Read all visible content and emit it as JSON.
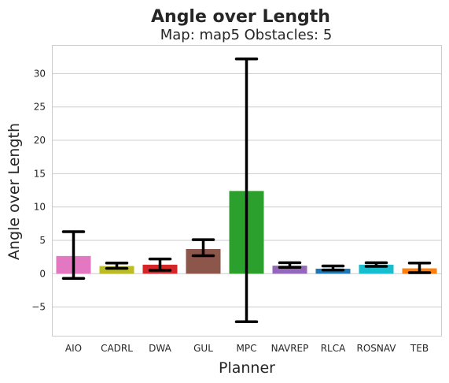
{
  "chart_data": {
    "type": "bar",
    "title": "Angle over Length",
    "subtitle": "Map: map5 Obstacles: 5",
    "xlabel": "Planner",
    "ylabel": "Angle over Length",
    "ylim": [
      -9.3,
      34.3
    ],
    "yticks": [
      -5,
      0,
      5,
      10,
      15,
      20,
      25,
      30
    ],
    "ytick_labels": [
      "−5",
      "0",
      "5",
      "10",
      "15",
      "20",
      "25",
      "30"
    ],
    "grid": "horizontal",
    "categories": [
      "AIO",
      "CADRL",
      "DWA",
      "GUL",
      "MPC",
      "NAVREP",
      "RLCA",
      "ROSNAV",
      "TEB"
    ],
    "values": [
      2.65,
      1.15,
      1.35,
      3.7,
      12.4,
      1.2,
      0.75,
      1.35,
      0.8
    ],
    "error_low": [
      -0.7,
      0.8,
      0.5,
      2.7,
      -7.2,
      0.95,
      0.55,
      1.1,
      0.15
    ],
    "error_high": [
      6.3,
      1.6,
      2.2,
      5.1,
      32.2,
      1.65,
      1.15,
      1.65,
      1.6
    ],
    "colors": [
      "#e377c2",
      "#bcbd22",
      "#d62728",
      "#8c564b",
      "#2ca02c",
      "#9467bd",
      "#1f77b4",
      "#17becf",
      "#ff7f0e"
    ]
  }
}
